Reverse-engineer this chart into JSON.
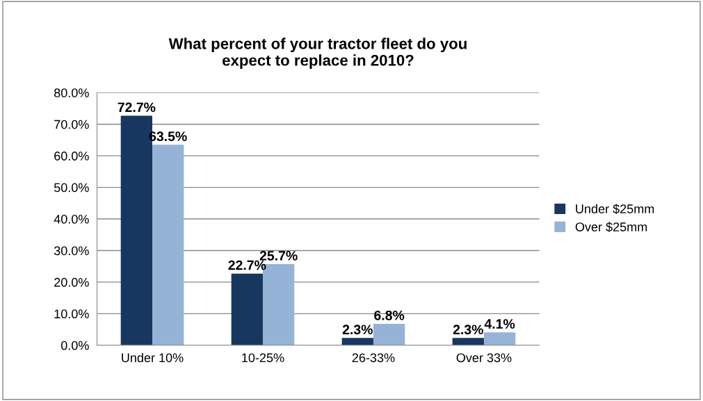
{
  "chart_data": {
    "type": "bar",
    "title": "What percent of your tractor fleet do you\nexpect to replace in 2010?",
    "categories": [
      "Under 10%",
      "10-25%",
      "26-33%",
      "Over 33%"
    ],
    "series": [
      {
        "name": "Under $25mm",
        "color": "#17375e",
        "values": [
          72.7,
          22.7,
          2.3,
          2.3
        ],
        "value_labels": [
          "72.7%",
          "22.7%",
          "2.3%",
          "2.3%"
        ]
      },
      {
        "name": "Over $25mm",
        "color": "#95b3d7",
        "values": [
          63.5,
          25.7,
          6.8,
          4.1
        ],
        "value_labels": [
          "63.5%",
          "25.7%",
          "6.8%",
          "4.1%"
        ]
      }
    ],
    "ylim": [
      0,
      80
    ],
    "yticks": [
      {
        "value": 0,
        "label": "0.0%"
      },
      {
        "value": 10,
        "label": "10.0%"
      },
      {
        "value": 20,
        "label": "20.0%"
      },
      {
        "value": 30,
        "label": "30.0%"
      },
      {
        "value": 40,
        "label": "40.0%"
      },
      {
        "value": 50,
        "label": "50.0%"
      },
      {
        "value": 60,
        "label": "60.0%"
      },
      {
        "value": 70,
        "label": "70.0%"
      },
      {
        "value": 80,
        "label": "80.0%"
      }
    ],
    "grid": "y",
    "legend": "right"
  }
}
